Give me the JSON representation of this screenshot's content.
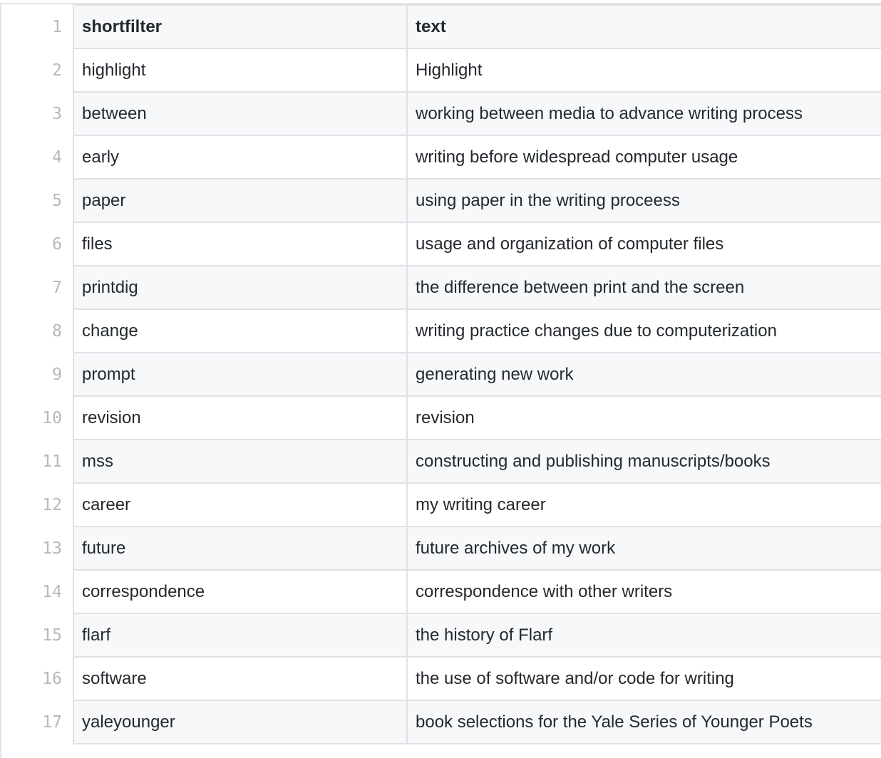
{
  "table": {
    "columns": [
      "shortfilter",
      "text"
    ],
    "rows": [
      [
        "highlight",
        "Highlight"
      ],
      [
        "between",
        "working between media to advance writing process"
      ],
      [
        "early",
        "writing before widespread computer usage"
      ],
      [
        "paper",
        "using paper in the writing proceess"
      ],
      [
        "files",
        "usage and organization of computer files"
      ],
      [
        "printdig",
        "the difference between print and the screen"
      ],
      [
        "change",
        "writing practice changes due to computerization"
      ],
      [
        "prompt",
        "generating new work"
      ],
      [
        "revision",
        "revision"
      ],
      [
        "mss",
        "constructing and publishing manuscripts/books"
      ],
      [
        "career",
        "my writing career"
      ],
      [
        "future",
        "future archives of my work"
      ],
      [
        "correspondence",
        "correspondence with other writers"
      ],
      [
        "flarf",
        "the history of Flarf"
      ],
      [
        "software",
        "the use of software and/or code for writing"
      ],
      [
        "yaleyounger",
        "book selections for the Yale Series of Younger Poets"
      ]
    ],
    "line_numbers": [
      "1",
      "2",
      "3",
      "4",
      "5",
      "6",
      "7",
      "8",
      "9",
      "10",
      "11",
      "12",
      "13",
      "14",
      "15",
      "16",
      "17"
    ]
  }
}
